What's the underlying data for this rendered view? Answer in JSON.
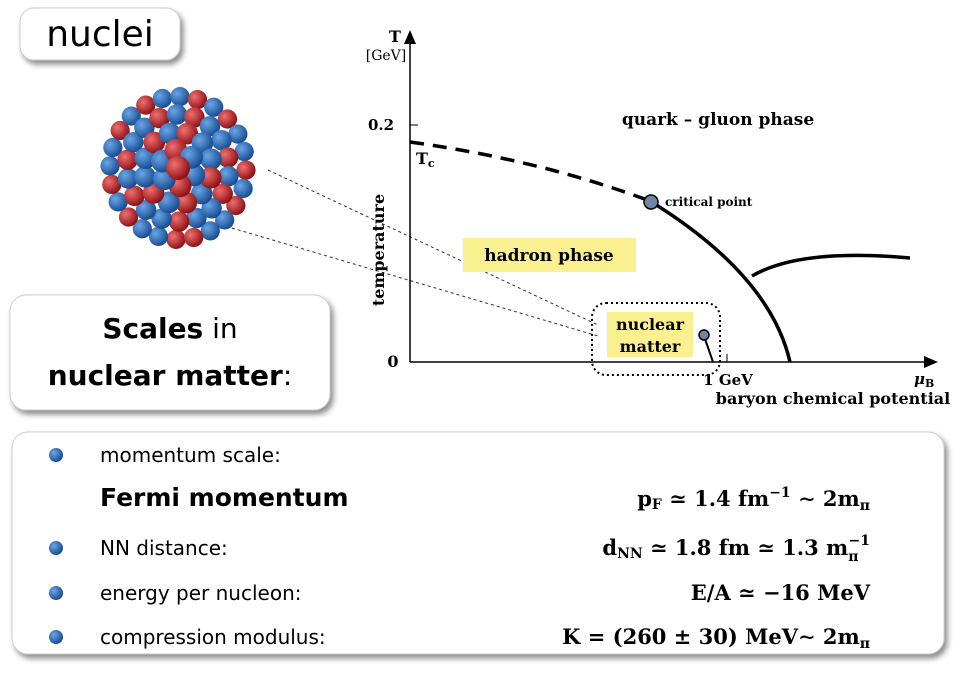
{
  "header": {
    "title": "nuclei"
  },
  "caption": {
    "parts": [
      "Scales",
      "in",
      "nuclear matter",
      ":"
    ]
  },
  "diagram": {
    "y_axis": {
      "symbol": "T",
      "unit": "[GeV]",
      "label": "temperature",
      "ticks": [
        "0.2",
        "0"
      ]
    },
    "x_axis": {
      "symbol": "μ",
      "symbol_sub": "B",
      "label": "baryon chemical potential",
      "tick": "1 GeV"
    },
    "tc": {
      "symbol": "T",
      "sub": "c"
    },
    "regions": [
      "quark – gluon phase",
      "hadron phase"
    ],
    "critical_point": "critical point",
    "nuclear_matter": [
      "nuclear",
      "matter"
    ]
  },
  "scales": [
    {
      "label": "momentum scale:",
      "sublabel": "Fermi momentum",
      "formula": [
        "p",
        "F",
        " ≃ 1.4 fm",
        "−1",
        " ∼ 2m",
        "π"
      ]
    },
    {
      "label": "NN distance:",
      "formula": [
        "d",
        "NN",
        " ≃ 1.8 fm ≃ 1.3 m",
        "π",
        "−1"
      ]
    },
    {
      "label": "energy per nucleon:",
      "formula": [
        "E/A ≃ −16 MeV"
      ]
    },
    {
      "label": "compression modulus:",
      "formula": [
        "K = (260 ± 30) MeV∼ 2m",
        "π"
      ]
    }
  ]
}
